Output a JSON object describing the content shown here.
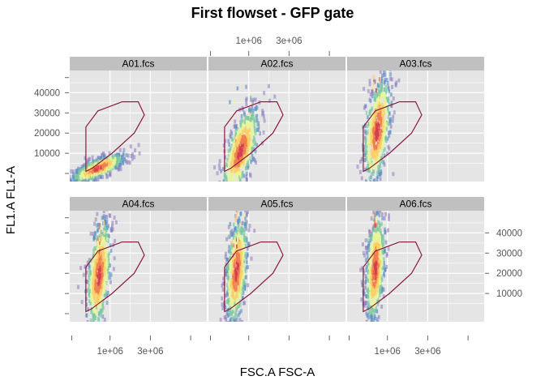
{
  "chart_data": {
    "type": "density-scatter",
    "title": "First flowset - GFP gate",
    "xlabel": "FSC.A FSC-A",
    "ylabel": "FL1.A FL1-A",
    "xlim": [
      -1000000,
      5800000
    ],
    "ylim": [
      -4000,
      51000
    ],
    "x_ticks": [
      1000000,
      3000000
    ],
    "x_tick_labels": [
      "1e+06",
      "3e+06"
    ],
    "y_ticks": [
      10000,
      20000,
      30000,
      40000
    ],
    "y_tick_labels": [
      "10000",
      "20000",
      "30000",
      "40000"
    ],
    "layout": {
      "columns": 3,
      "rows": 2
    },
    "panels": [
      "A01.fcs",
      "A02.fcs",
      "A03.fcs",
      "A04.fcs",
      "A05.fcs",
      "A06.fcs"
    ],
    "gate_polygon": [
      [
        -200000,
        1000
      ],
      [
        100000,
        2500
      ],
      [
        1100000,
        10000
      ],
      [
        2200000,
        20000
      ],
      [
        2700000,
        29000
      ],
      [
        2400000,
        35500
      ],
      [
        1600000,
        35500
      ],
      [
        400000,
        31000
      ],
      [
        -200000,
        23000
      ]
    ],
    "populations": {
      "A01.fcs": {
        "center": [
          400000,
          2500
        ],
        "spread": [
          650000,
          2200
        ],
        "tilt": 0.004,
        "tail": 0.02
      },
      "A02.fcs": {
        "center": [
          600000,
          11000
        ],
        "spread": [
          450000,
          8000
        ],
        "tilt": 0.015,
        "tail": 0.35
      },
      "A03.fcs": {
        "center": [
          500000,
          21000
        ],
        "spread": [
          330000,
          11500
        ],
        "tilt": 0.018,
        "tail": 0.7
      },
      "A04.fcs": {
        "center": [
          450000,
          19000
        ],
        "spread": [
          300000,
          12000
        ],
        "tilt": 0.018,
        "tail": 0.6
      },
      "A05.fcs": {
        "center": [
          400000,
          21000
        ],
        "spread": [
          270000,
          12000
        ],
        "tilt": 0.018,
        "tail": 0.7
      },
      "A06.fcs": {
        "center": [
          400000,
          22000
        ],
        "spread": [
          240000,
          12000
        ],
        "tilt": 0.018,
        "tail": 0.7
      }
    },
    "colors": {
      "panel_background": "#e5e5e5",
      "grid": "#ffffff",
      "strip_background": "#c0c0c0",
      "gate": "#8b1a3c",
      "density_palette": [
        "#8e7bbf",
        "#5e8fc4",
        "#7cc8a3",
        "#e6f598",
        "#fdcf65",
        "#f07f4f",
        "#d53e4f"
      ]
    }
  }
}
